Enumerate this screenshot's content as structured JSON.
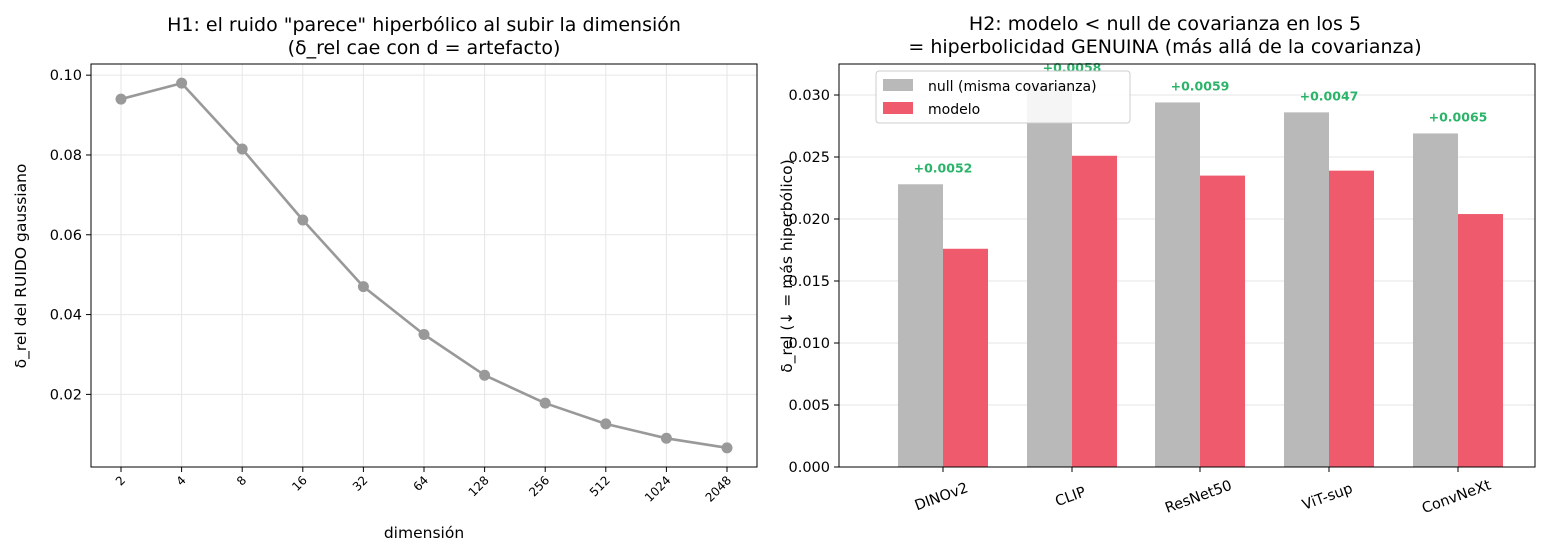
{
  "chart_data": [
    {
      "type": "line",
      "title": "H1: el ruido \"parece\" hiperbólico al subir la dimensión",
      "subtitle": "(δ_rel cae con d = artefacto)",
      "xlabel": "dimensión",
      "ylabel": "δ_rel del RUIDO gaussiano",
      "x_scale": "log2",
      "x": [
        "2",
        "4",
        "8",
        "16",
        "32",
        "64",
        "128",
        "256",
        "512",
        "1024",
        "2048"
      ],
      "ylim": [
        0.0018,
        0.1028
      ],
      "yticks": [
        "0.02",
        "0.04",
        "0.06",
        "0.08",
        "0.10"
      ],
      "grid": true,
      "color": "#999999",
      "series": [
        {
          "values": [
            0.094,
            0.098,
            0.0815,
            0.0637,
            0.047,
            0.035,
            0.0248,
            0.0178,
            0.0126,
            0.009,
            0.0066
          ]
        }
      ]
    },
    {
      "type": "bar",
      "title": "H2: modelo < null de covarianza en los 5",
      "subtitle": "= hiperbolicidad GENUINA (más allá de la covarianza)",
      "xlabel": "",
      "ylabel": "δ_rel (↓ = más hiperbólico)",
      "categories": [
        "DINOv2",
        "CLIP",
        "ResNet50",
        "ViT-sup",
        "ConvNeXt"
      ],
      "ylim": [
        0,
        0.0325
      ],
      "yticks": [
        "0.000",
        "0.005",
        "0.010",
        "0.015",
        "0.020",
        "0.025",
        "0.030"
      ],
      "grid": true,
      "legend_position": "top-left",
      "series": [
        {
          "name": "null (misma covarianza)",
          "color": "#b9b9b9",
          "values": [
            0.0228,
            0.0309,
            0.0294,
            0.0286,
            0.0269
          ]
        },
        {
          "name": "modelo",
          "color": "#ef5b6c",
          "values": [
            0.0176,
            0.0251,
            0.0235,
            0.0239,
            0.0204
          ]
        }
      ],
      "annotations": [
        "+0.0052",
        "+0.0058",
        "+0.0059",
        "+0.0047",
        "+0.0065"
      ],
      "annotation_color": "#2cb36a"
    }
  ]
}
